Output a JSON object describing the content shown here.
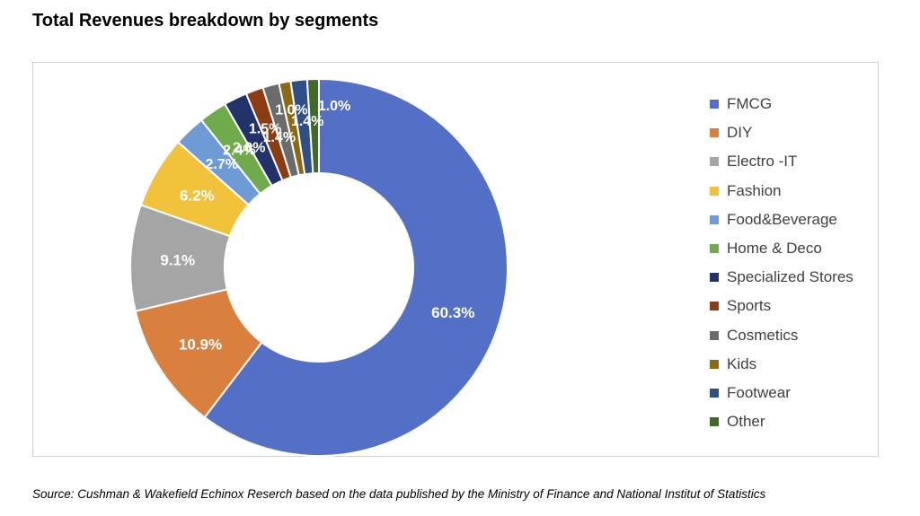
{
  "page": {
    "title": "Total Revenues breakdown by segments",
    "source": "Source: Cushman & Wakefield Echinox Reserch based on the data published by the Ministry of Finance and National Institut of Statistics"
  },
  "chart_data": {
    "type": "pie",
    "variant": "donut",
    "title": "Total Revenues breakdown by segments",
    "legend_position": "right",
    "categories": [
      "FMCG",
      "DIY",
      "Electro -IT",
      "Fashion",
      "Food&Beverage",
      "Home & Deco",
      "Specialized Stores",
      "Sports",
      "Cosmetics",
      "Kids",
      "Footwear",
      "Other"
    ],
    "values": [
      60.3,
      10.9,
      9.1,
      6.2,
      2.7,
      2.4,
      2.0,
      1.5,
      1.4,
      1.0,
      1.4,
      1.0
    ],
    "labels": [
      "60.3%",
      "10.9%",
      "9.1%",
      "6.2%",
      "2.7%",
      "2.4%",
      "2.0%",
      "1.5%",
      "1.4%",
      "1.0%",
      "1.4%",
      "1.0%"
    ],
    "unit": "%",
    "colors": [
      "#5470c6",
      "#d9803f",
      "#a5a5a5",
      "#f2c23a",
      "#6e9bd6",
      "#6fab4a",
      "#22336b",
      "#8b3c12",
      "#6b6b6b",
      "#8c6a12",
      "#2f4f86",
      "#3f6b26"
    ]
  }
}
